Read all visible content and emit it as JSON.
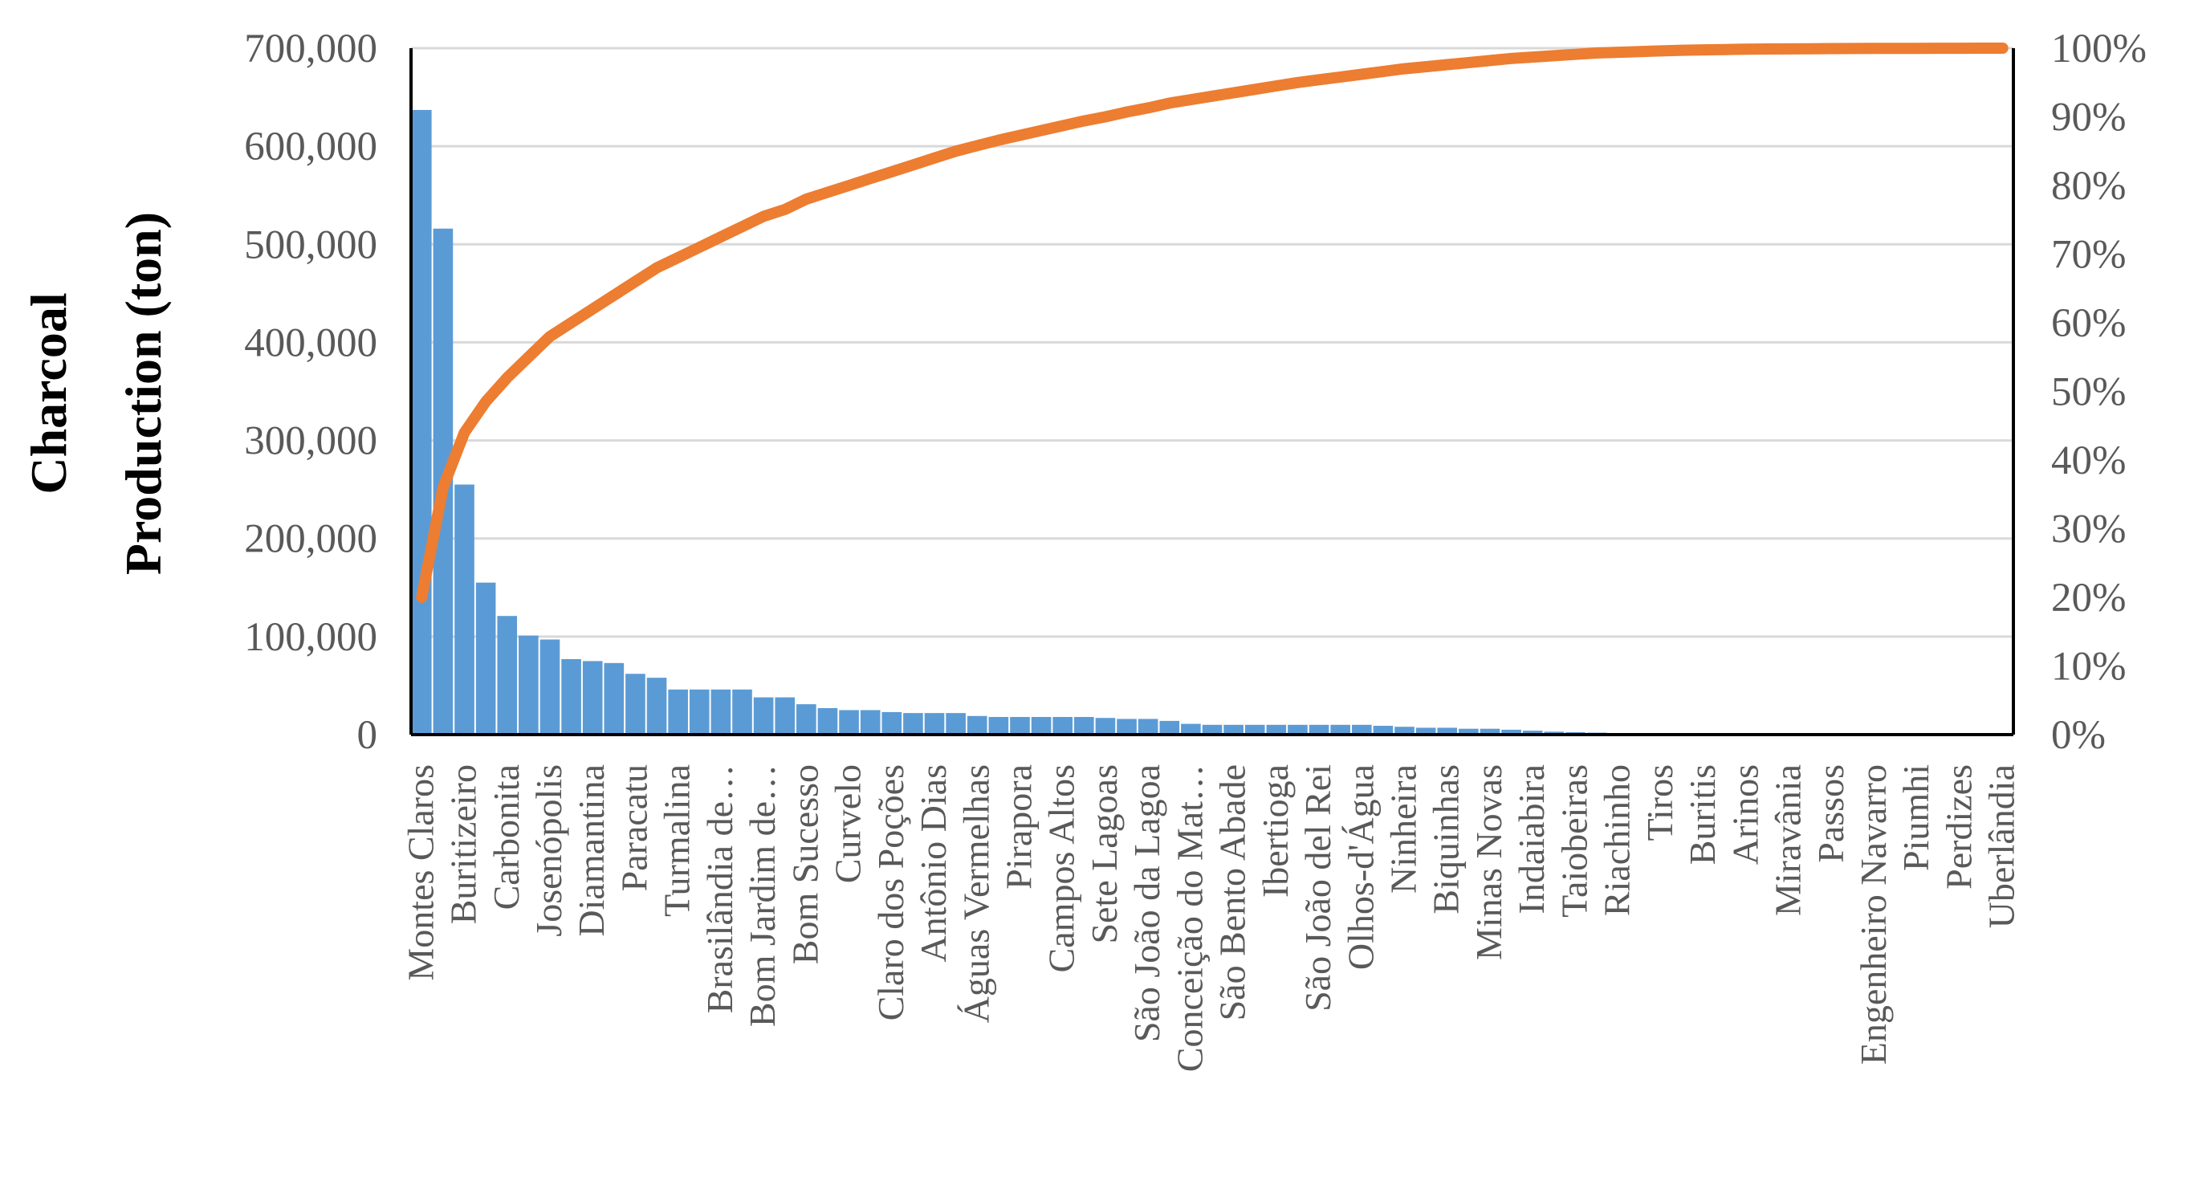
{
  "chart_data": {
    "type": "bar",
    "ylabel": [
      "Charcoal",
      "Production (ton)"
    ],
    "xlabel": "",
    "ylim": [
      0,
      700000
    ],
    "y_ticks": [
      "0",
      "100,000",
      "200,000",
      "300,000",
      "400,000",
      "500,000",
      "600,000",
      "700,000"
    ],
    "y2lim": [
      0,
      1
    ],
    "y2_ticks": [
      "0%",
      "10%",
      "20%",
      "30%",
      "40%",
      "50%",
      "60%",
      "70%",
      "80%",
      "90%",
      "100%"
    ],
    "grid": true,
    "legend": "none",
    "bar_color": "#5b9bd5",
    "line_color": "#ed7d31",
    "categories": [
      "Montes Claros",
      "",
      "Buritizeiro",
      "",
      "Carbonita",
      "",
      "Josenópolis",
      "",
      "Diamantina",
      "",
      "Paracatu",
      "",
      "Turmalina",
      "",
      "Brasilândia de…",
      "",
      "Bom Jardim de…",
      "",
      "Bom Sucesso",
      "",
      "Curvelo",
      "",
      "Claro dos Poções",
      "",
      "Antônio Dias",
      "",
      "Águas Vermelhas",
      "",
      "Pirapora",
      "",
      "Campos Altos",
      "",
      "Sete Lagoas",
      "",
      "São João da Lagoa",
      "",
      "Conceição do Mat…",
      "",
      "São Bento Abade",
      "",
      "Ibertioga",
      "",
      "São João del Rei",
      "",
      "Olhos-d'Água",
      "",
      "Ninheira",
      "",
      "Biquinhas",
      "",
      "Minas Novas",
      "",
      "Indaiabira",
      "",
      "Taiobeiras",
      "",
      "Riachinho",
      "",
      "Tiros",
      "",
      "Buritis",
      "",
      "Arinos",
      "",
      "Miravânia",
      "",
      "Passos",
      "",
      "Engenheiro Navarro",
      "",
      "Piumhi",
      "",
      "Perdizes",
      "",
      "Uberlândia"
    ],
    "values": [
      637000,
      516000,
      255000,
      155000,
      121000,
      101000,
      97000,
      77000,
      75000,
      73000,
      62000,
      58000,
      46000,
      46000,
      46000,
      46000,
      38000,
      38000,
      31000,
      27000,
      25000,
      25000,
      23000,
      22000,
      22000,
      22000,
      19000,
      18000,
      18000,
      18000,
      18000,
      18000,
      17000,
      16000,
      16000,
      14000,
      11000,
      10000,
      10000,
      10000,
      10000,
      10000,
      10000,
      10000,
      10000,
      9000,
      8000,
      7000,
      7000,
      6000,
      6000,
      5000,
      4000,
      3000,
      2500,
      2000,
      1500,
      1200,
      1000,
      800,
      700,
      600,
      500,
      400,
      350,
      300,
      250,
      200,
      150,
      120,
      100,
      80,
      60,
      50,
      40
    ],
    "cumulative_percent": [
      20,
      36,
      44,
      48.5,
      52,
      55,
      58,
      60,
      62,
      64,
      66,
      68,
      69.5,
      71,
      72.5,
      74,
      75.5,
      76.5,
      78,
      79,
      80,
      81,
      82,
      83,
      84,
      85,
      85.8,
      86.6,
      87.3,
      88,
      88.7,
      89.4,
      90,
      90.7,
      91.3,
      92,
      92.5,
      93,
      93.5,
      94,
      94.5,
      95,
      95.4,
      95.8,
      96.2,
      96.6,
      97,
      97.3,
      97.6,
      97.9,
      98.2,
      98.5,
      98.7,
      98.9,
      99.1,
      99.3,
      99.4,
      99.5,
      99.6,
      99.7,
      99.75,
      99.8,
      99.85,
      99.88,
      99.9,
      99.92,
      99.94,
      99.95,
      99.96,
      99.97,
      99.98,
      99.99,
      99.99,
      100,
      100
    ]
  }
}
